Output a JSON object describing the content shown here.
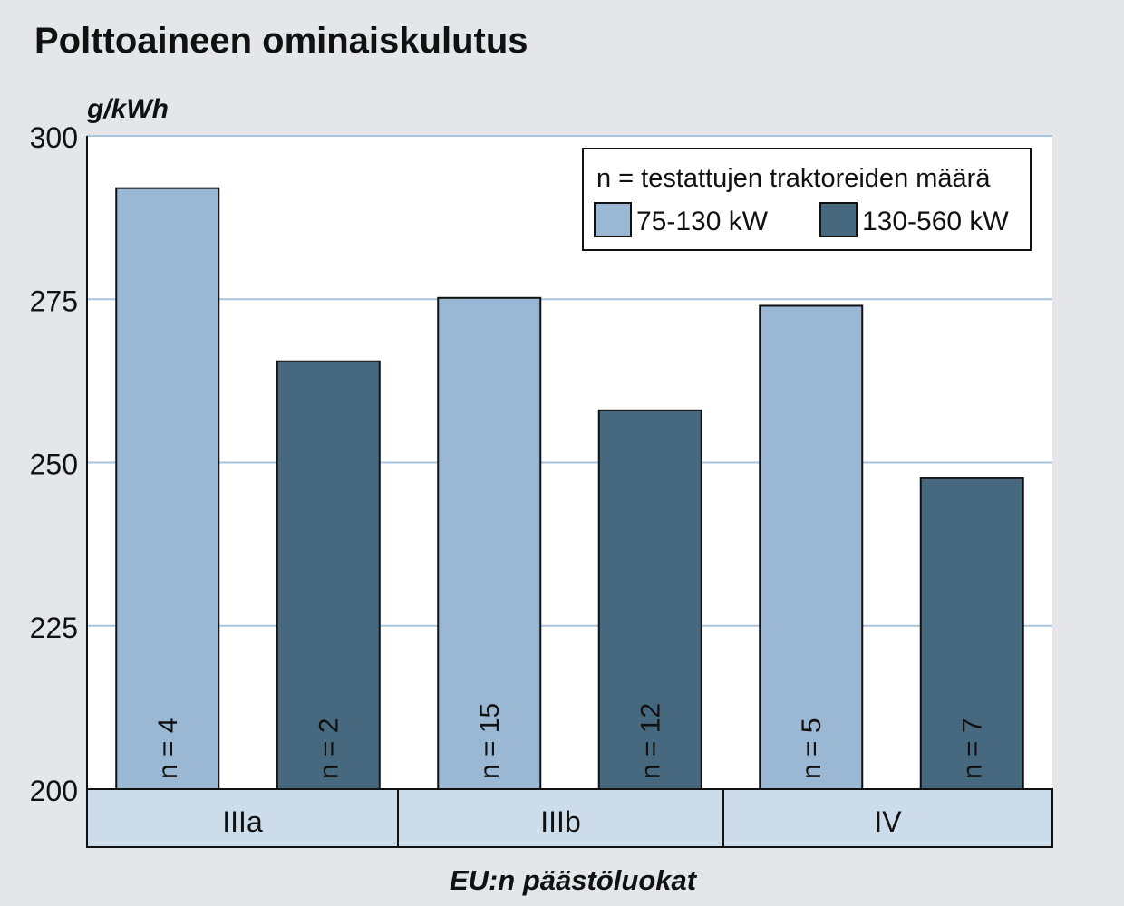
{
  "chart_data": {
    "type": "bar",
    "title": "Polttoaineen ominaiskulutus",
    "unit_label": "g/kWh",
    "xlabel": "EU:n päästöluokat",
    "categories": [
      "IIIa",
      "IIIb",
      "IV"
    ],
    "ylim": [
      200,
      300
    ],
    "yticks": [
      200,
      225,
      250,
      275,
      300
    ],
    "grid": true,
    "legend_position": "top-right",
    "legend_title": "n = testattujen traktoreiden määrä",
    "series": [
      {
        "name": "75-130 kW",
        "color": "#9ab7d3",
        "values": [
          292,
          275.2,
          274
        ],
        "n_labels": [
          "n = 4",
          "n = 15",
          "n = 5"
        ]
      },
      {
        "name": "130-560 kW",
        "color": "#476980",
        "values": [
          265.5,
          258,
          247.6
        ],
        "n_labels": [
          "n = 2",
          "n = 12",
          "n = 7"
        ]
      }
    ],
    "colors": {
      "background": "#e4e6ea",
      "plot_background": "#ffffff",
      "gridline": "#a9c3da",
      "category_band": "#cddcea"
    }
  }
}
